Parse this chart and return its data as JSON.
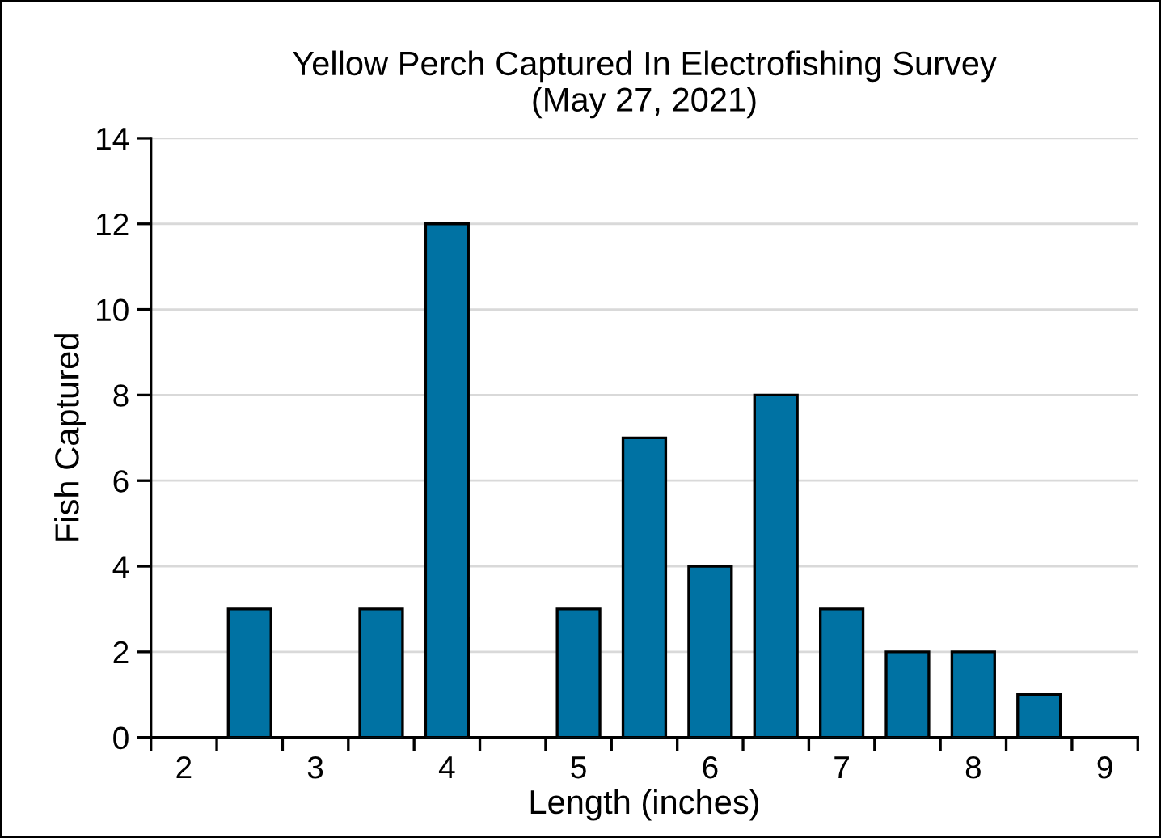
{
  "chart_data": {
    "type": "bar",
    "title": "Yellow Perch Captured In Electrofishing Survey\n(May 27, 2021)",
    "xlabel": "Length (inches)",
    "ylabel": "Fish Captured",
    "categories": [
      "2",
      null,
      "3",
      null,
      "4",
      null,
      "5",
      null,
      "6",
      null,
      "7",
      null,
      "8",
      null,
      "9"
    ],
    "values": [
      0,
      3,
      0,
      3,
      12,
      0,
      3,
      7,
      4,
      8,
      3,
      2,
      2,
      1,
      0
    ],
    "color": "#0072a3",
    "ylim": [
      0,
      14
    ],
    "yticks": [
      0,
      2,
      4,
      6,
      8,
      10,
      12,
      14
    ],
    "grid": "y"
  }
}
